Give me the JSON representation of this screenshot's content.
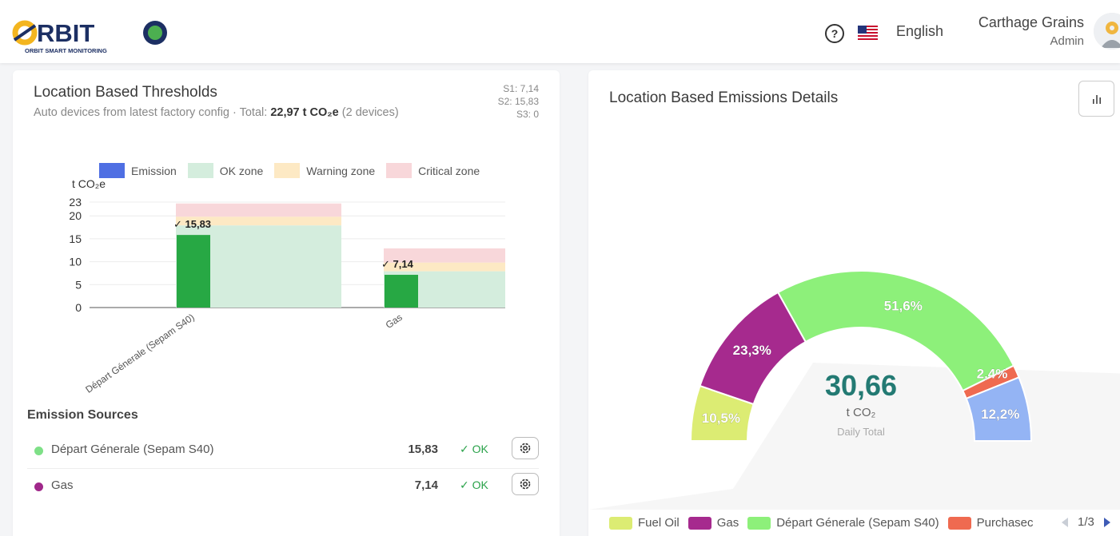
{
  "header": {
    "logo_text": "RBIT",
    "logo_subtitle": "ORBIT SMART MONITORING",
    "language": "English",
    "user_name": "Carthage Grains",
    "user_role": "Admin"
  },
  "thresholds_card": {
    "title": "Location Based Thresholds",
    "subtitle_prefix": "Auto devices from latest factory config · Total: ",
    "subtitle_total": "22,97 t CO₂e",
    "subtitle_suffix": " (2 devices)",
    "scopes": [
      "S1: 7,14",
      "S2: 15,83",
      "S3: 0"
    ],
    "legend": [
      {
        "label": "Emission",
        "color": "#4f6fe3"
      },
      {
        "label": "OK zone",
        "color": "#d4eddd"
      },
      {
        "label": "Warning zone",
        "color": "#fde9c4"
      },
      {
        "label": "Critical zone",
        "color": "#f8d7da"
      }
    ]
  },
  "chart_data": {
    "type": "bar",
    "ylabel": "t CO₂e",
    "ylim": [
      0,
      23
    ],
    "yticks": [
      0,
      5,
      10,
      15,
      20,
      23
    ],
    "categories": [
      "Départ Génerale  (Sepam S40)",
      "Gas"
    ],
    "values": [
      15.83,
      7.14
    ],
    "value_labels": [
      "✓ 15,83",
      "✓ 7,14"
    ],
    "ok_max": [
      17.9,
      7.9
    ],
    "warning_max": [
      19.8,
      9.8
    ],
    "critical_max": [
      22.7,
      12.9
    ],
    "bar_color": "#27a844"
  },
  "emission_sources": {
    "title": "Emission Sources",
    "rows": [
      {
        "name": "Départ Génerale (Sepam S40)",
        "value": "15,83",
        "status": "✓ OK",
        "dot_color": "#7ee087"
      },
      {
        "name": "Gas",
        "value": "7,14",
        "status": "✓ OK",
        "dot_color": "#a0288a"
      }
    ]
  },
  "emissions_card": {
    "title": "Location Based Emissions Details",
    "center_value": "30,66",
    "center_unit": "t CO₂",
    "center_caption": "Daily Total",
    "segments": [
      {
        "label": "10,5%",
        "share": 10.5,
        "color": "#dcec73"
      },
      {
        "label": "23,3%",
        "share": 23.3,
        "color": "#a62a8e"
      },
      {
        "label": "51,6%",
        "share": 51.6,
        "color": "#8df07a"
      },
      {
        "label": "2,4%",
        "share": 2.4,
        "color": "#ef6a50"
      },
      {
        "label": "12,2%",
        "share": 12.2,
        "color": "#94b4f4"
      }
    ],
    "legend": [
      {
        "label": "Fuel Oil",
        "color": "#dcec73"
      },
      {
        "label": "Gas",
        "color": "#a62a8e"
      },
      {
        "label": "Départ Génerale  (Sepam S40)",
        "color": "#8df07a"
      },
      {
        "label": "Purchasec",
        "color": "#ef6a50"
      }
    ],
    "pager": "1/3"
  }
}
